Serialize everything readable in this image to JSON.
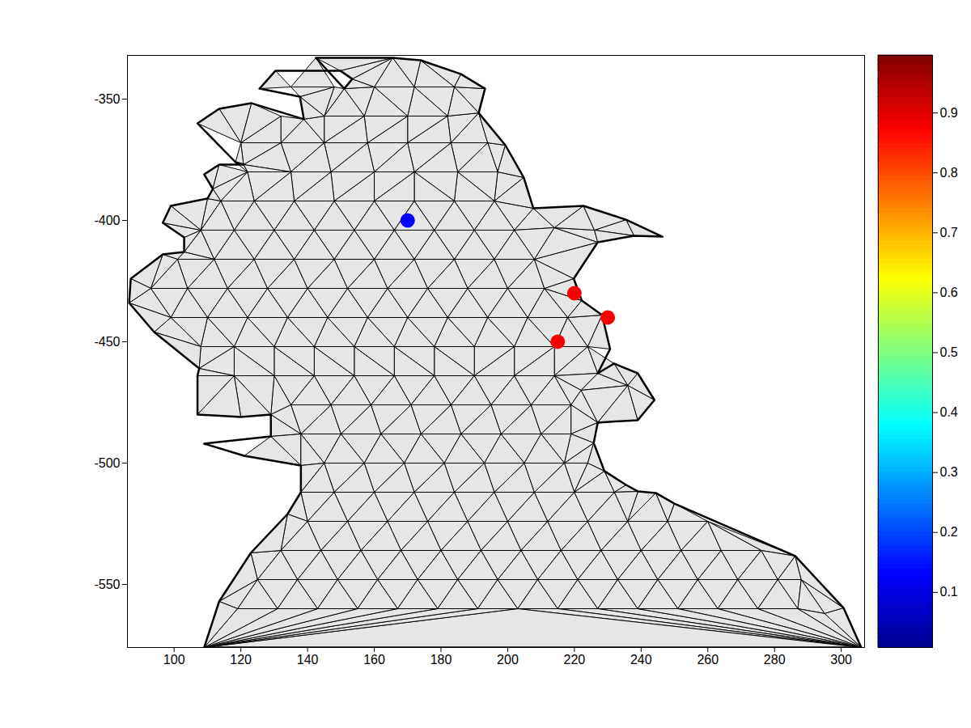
{
  "chart_data": {
    "type": "mesh",
    "xlim": [
      86,
      307
    ],
    "ylim": [
      -576,
      -332
    ],
    "xticks": [
      100,
      120,
      140,
      160,
      180,
      200,
      220,
      240,
      260,
      280,
      300
    ],
    "yticks": [
      -550,
      -500,
      -450,
      -400,
      -350
    ],
    "boundary": [
      [
        109,
        -576
      ],
      [
        113.5,
        -557
      ],
      [
        123,
        -537
      ],
      [
        134,
        -521
      ],
      [
        138,
        -512
      ],
      [
        138,
        -501
      ],
      [
        121,
        -497
      ],
      [
        109,
        -492
      ],
      [
        129,
        -489
      ],
      [
        129,
        -480
      ],
      [
        120,
        -481
      ],
      [
        107,
        -480
      ],
      [
        107,
        -464
      ],
      [
        107.5,
        -461
      ],
      [
        94,
        -446
      ],
      [
        86.5,
        -434
      ],
      [
        87,
        -424
      ],
      [
        96.6,
        -414
      ],
      [
        103,
        -413
      ],
      [
        103,
        -407
      ],
      [
        96.6,
        -401
      ],
      [
        99,
        -394
      ],
      [
        110,
        -391
      ],
      [
        111.6,
        -387
      ],
      [
        109,
        -381
      ],
      [
        113.5,
        -377
      ],
      [
        120.8,
        -377
      ],
      [
        118.4,
        -376
      ],
      [
        107,
        -360
      ],
      [
        113.5,
        -354
      ],
      [
        123.2,
        -351.7
      ],
      [
        138.9,
        -358.3
      ],
      [
        137.7,
        -349
      ],
      [
        125.6,
        -345.7
      ],
      [
        130.4,
        -338.3
      ],
      [
        149.8,
        -338.3
      ],
      [
        153.4,
        -341.7
      ],
      [
        151,
        -345.7
      ],
      [
        142.5,
        -333
      ],
      [
        165.5,
        -333
      ],
      [
        173.9,
        -334
      ],
      [
        186,
        -339.7
      ],
      [
        193.2,
        -345.7
      ],
      [
        191.3,
        -355.7
      ],
      [
        199.3,
        -369
      ],
      [
        204.8,
        -382.3
      ],
      [
        207.7,
        -395
      ],
      [
        222.7,
        -394
      ],
      [
        235.5,
        -399.7
      ],
      [
        246.4,
        -406.7
      ],
      [
        237.9,
        -406.3
      ],
      [
        227,
        -409
      ],
      [
        219.8,
        -424
      ],
      [
        222.2,
        -433
      ],
      [
        228.3,
        -439
      ],
      [
        230.7,
        -453
      ],
      [
        227,
        -463
      ],
      [
        231.9,
        -459
      ],
      [
        239,
        -463
      ],
      [
        244,
        -474
      ],
      [
        239,
        -482.3
      ],
      [
        227,
        -483.3
      ],
      [
        225.8,
        -491.7
      ],
      [
        229,
        -503.3
      ],
      [
        235.5,
        -509
      ],
      [
        239.1,
        -511.7
      ],
      [
        244.4,
        -512.3
      ],
      [
        250,
        -516.7
      ],
      [
        286.2,
        -538.3
      ],
      [
        300.7,
        -559.7
      ],
      [
        306,
        -576
      ]
    ],
    "nodes": [
      [
        135,
        -345
      ],
      [
        148,
        -345
      ],
      [
        160,
        -345
      ],
      [
        172,
        -345
      ],
      [
        184,
        -345
      ],
      [
        132,
        -357
      ],
      [
        145,
        -357
      ],
      [
        157,
        -357
      ],
      [
        170,
        -357
      ],
      [
        182,
        -357
      ],
      [
        120,
        -368
      ],
      [
        132,
        -368
      ],
      [
        145,
        -368
      ],
      [
        158,
        -368
      ],
      [
        170,
        -368
      ],
      [
        183,
        -368
      ],
      [
        194,
        -368
      ],
      [
        122,
        -380
      ],
      [
        135,
        -380
      ],
      [
        147,
        -380
      ],
      [
        160,
        -380
      ],
      [
        172,
        -380
      ],
      [
        185,
        -380
      ],
      [
        197,
        -380
      ],
      [
        114,
        -392
      ],
      [
        124,
        -392
      ],
      [
        136,
        -392
      ],
      [
        148,
        -392
      ],
      [
        160,
        -392
      ],
      [
        172,
        -392
      ],
      [
        184,
        -392
      ],
      [
        196,
        -392
      ],
      [
        108,
        -404
      ],
      [
        118,
        -404
      ],
      [
        130,
        -404
      ],
      [
        142,
        -404
      ],
      [
        154,
        -404
      ],
      [
        166,
        -404
      ],
      [
        178,
        -404
      ],
      [
        190,
        -404
      ],
      [
        202,
        -404
      ],
      [
        214,
        -403
      ],
      [
        226,
        -404
      ],
      [
        101,
        -416
      ],
      [
        112,
        -416
      ],
      [
        124,
        -416
      ],
      [
        136,
        -416
      ],
      [
        148,
        -416
      ],
      [
        160,
        -416
      ],
      [
        172,
        -416
      ],
      [
        184,
        -416
      ],
      [
        196,
        -416
      ],
      [
        208,
        -416
      ],
      [
        93,
        -428
      ],
      [
        104,
        -428
      ],
      [
        116,
        -428
      ],
      [
        128,
        -428
      ],
      [
        140,
        -428
      ],
      [
        152,
        -428
      ],
      [
        164,
        -428
      ],
      [
        176,
        -428
      ],
      [
        188,
        -428
      ],
      [
        200,
        -428
      ],
      [
        211,
        -428
      ],
      [
        99,
        -440
      ],
      [
        110,
        -440
      ],
      [
        122,
        -440
      ],
      [
        134,
        -440
      ],
      [
        146,
        -440
      ],
      [
        158,
        -440
      ],
      [
        170,
        -440
      ],
      [
        182,
        -440
      ],
      [
        194,
        -440
      ],
      [
        206,
        -440
      ],
      [
        218,
        -440
      ],
      [
        108,
        -452
      ],
      [
        118,
        -452
      ],
      [
        130,
        -452
      ],
      [
        142,
        -452
      ],
      [
        154,
        -452
      ],
      [
        166,
        -452
      ],
      [
        178,
        -452
      ],
      [
        190,
        -452
      ],
      [
        202,
        -452
      ],
      [
        214,
        -452
      ],
      [
        224,
        -452
      ],
      [
        118,
        -464
      ],
      [
        130,
        -464
      ],
      [
        142,
        -464
      ],
      [
        154,
        -464
      ],
      [
        166,
        -464
      ],
      [
        178,
        -464
      ],
      [
        190,
        -464
      ],
      [
        202,
        -464
      ],
      [
        214,
        -464
      ],
      [
        222,
        -470
      ],
      [
        236,
        -468
      ],
      [
        135,
        -476
      ],
      [
        147,
        -476
      ],
      [
        159,
        -476
      ],
      [
        171,
        -476
      ],
      [
        183,
        -476
      ],
      [
        195,
        -476
      ],
      [
        207,
        -476
      ],
      [
        219,
        -476
      ],
      [
        138,
        -488
      ],
      [
        150,
        -488
      ],
      [
        162,
        -488
      ],
      [
        174,
        -488
      ],
      [
        186,
        -488
      ],
      [
        198,
        -488
      ],
      [
        210,
        -488
      ],
      [
        219,
        -488
      ],
      [
        145,
        -500
      ],
      [
        157,
        -500
      ],
      [
        169,
        -500
      ],
      [
        181,
        -500
      ],
      [
        193,
        -500
      ],
      [
        205,
        -500
      ],
      [
        217,
        -500
      ],
      [
        224,
        -500
      ],
      [
        148,
        -512
      ],
      [
        160,
        -512
      ],
      [
        172,
        -512
      ],
      [
        184,
        -512
      ],
      [
        196,
        -512
      ],
      [
        208,
        -512
      ],
      [
        220,
        -512
      ],
      [
        232,
        -512
      ],
      [
        140,
        -524
      ],
      [
        152,
        -524
      ],
      [
        164,
        -524
      ],
      [
        176,
        -524
      ],
      [
        188,
        -524
      ],
      [
        200,
        -524
      ],
      [
        212,
        -524
      ],
      [
        224,
        -524
      ],
      [
        236,
        -524
      ],
      [
        248,
        -524
      ],
      [
        260,
        -524
      ],
      [
        132,
        -536
      ],
      [
        144,
        -536
      ],
      [
        156,
        -536
      ],
      [
        168,
        -536
      ],
      [
        180,
        -536
      ],
      [
        192,
        -536
      ],
      [
        204,
        -536
      ],
      [
        216,
        -536
      ],
      [
        228,
        -536
      ],
      [
        240,
        -536
      ],
      [
        252,
        -536
      ],
      [
        264,
        -536
      ],
      [
        276,
        -536
      ],
      [
        125,
        -548
      ],
      [
        137,
        -548
      ],
      [
        149,
        -548
      ],
      [
        161,
        -548
      ],
      [
        173,
        -548
      ],
      [
        185,
        -548
      ],
      [
        197,
        -548
      ],
      [
        209,
        -548
      ],
      [
        221,
        -548
      ],
      [
        233,
        -548
      ],
      [
        245,
        -548
      ],
      [
        257,
        -548
      ],
      [
        269,
        -548
      ],
      [
        281,
        -548
      ],
      [
        288,
        -548
      ],
      [
        119,
        -560
      ],
      [
        131,
        -560
      ],
      [
        143,
        -560
      ],
      [
        155,
        -560
      ],
      [
        167,
        -560
      ],
      [
        179,
        -560
      ],
      [
        191,
        -560
      ],
      [
        203,
        -560
      ],
      [
        215,
        -560
      ],
      [
        227,
        -560
      ],
      [
        239,
        -560
      ],
      [
        251,
        -560
      ],
      [
        263,
        -560
      ],
      [
        275,
        -560
      ],
      [
        287,
        -560
      ],
      [
        295,
        -562
      ]
    ],
    "points": {
      "x": [
        170,
        220,
        230,
        215
      ],
      "y": [
        -400,
        -430,
        -440,
        -450
      ],
      "values": [
        0.13,
        0.88,
        0.88,
        0.88
      ]
    },
    "colorbar": {
      "range": [
        0.008,
        0.996
      ],
      "ticks": [
        0.1,
        0.2,
        0.3,
        0.4,
        0.5,
        0.6,
        0.7,
        0.8,
        0.9
      ]
    }
  }
}
